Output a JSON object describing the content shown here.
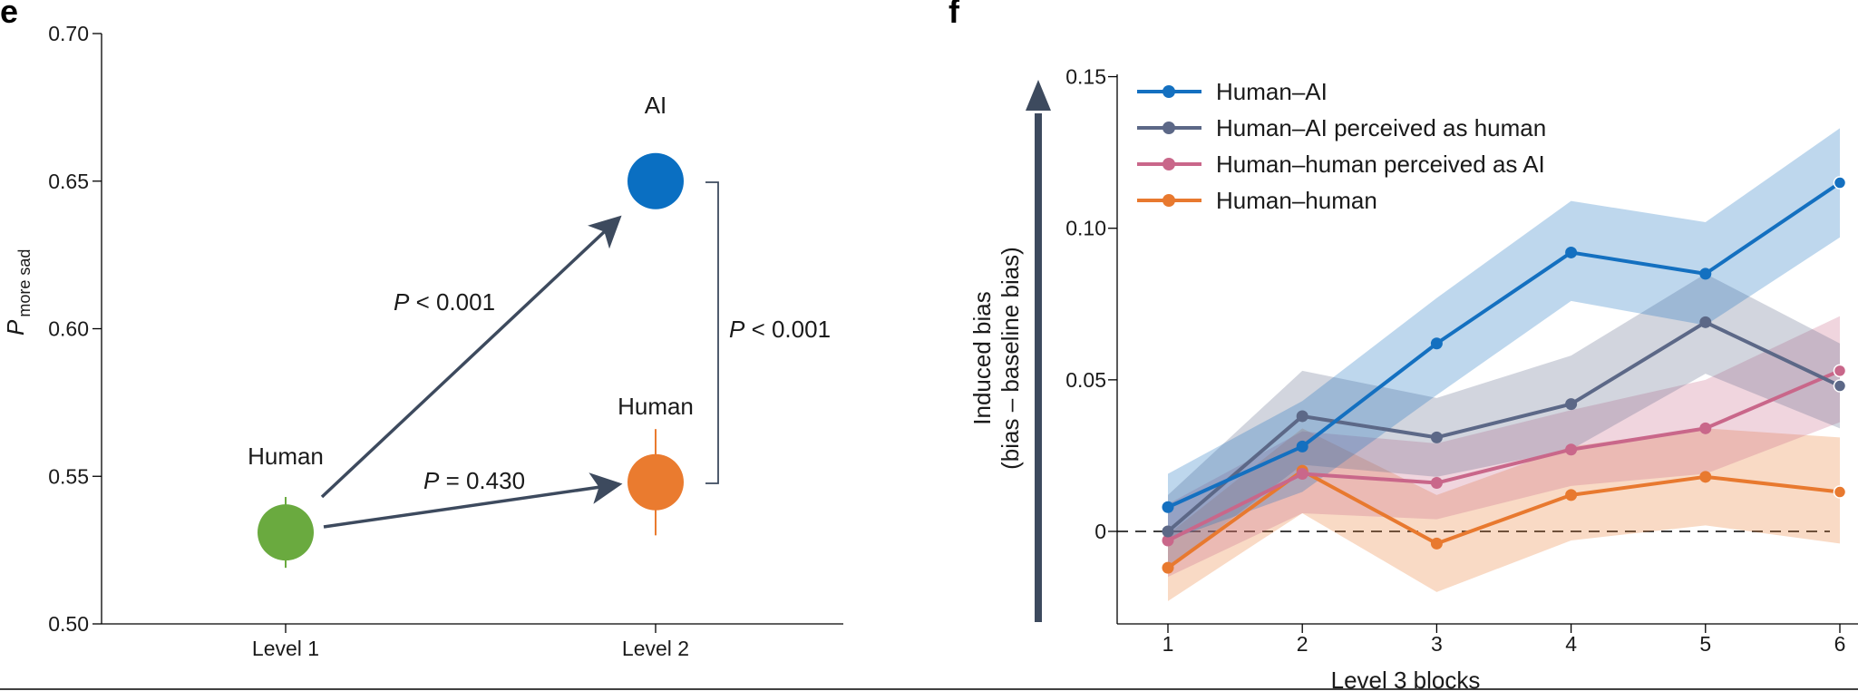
{
  "chart_data": [
    {
      "panel": "e",
      "type": "scatter",
      "categories": [
        "Level 1",
        "Level 2"
      ],
      "ylabel_main": "P",
      "ylabel_sub": "more sad",
      "ylim": [
        0.5,
        0.7
      ],
      "yticks": [
        "0.70",
        "0.65",
        "0.60",
        "0.55",
        "0.50"
      ],
      "points": [
        {
          "label": "Human",
          "category": "Level 1",
          "value": 0.531,
          "err_low": 0.519,
          "err_high": 0.543,
          "color": "#6aaa3f"
        },
        {
          "label": "AI",
          "category": "Level 2",
          "value": 0.65,
          "err_low": 0.65,
          "err_high": 0.65,
          "color": "#0a6fc2"
        },
        {
          "label": "Human",
          "category": "Level 2",
          "value": 0.548,
          "err_low": 0.53,
          "err_high": 0.566,
          "color": "#ea7b2f"
        }
      ],
      "annotations": [
        {
          "italic": "P",
          "rest": " < 0.001"
        },
        {
          "italic": "P",
          "rest": " = 0.430"
        },
        {
          "italic": "P",
          "rest": " < 0.001"
        }
      ]
    },
    {
      "panel": "f",
      "type": "line",
      "xlabel": "Level 3 blocks",
      "ylabel": "Induced bias",
      "ylabel2": "(bias – baseline bias)",
      "x": [
        1,
        2,
        3,
        4,
        5,
        6
      ],
      "xticks": [
        "1",
        "2",
        "3",
        "4",
        "5",
        "6"
      ],
      "ylim": [
        -0.03,
        0.15
      ],
      "yticks": [
        "0.15",
        "0.10",
        "0.05",
        "0"
      ],
      "reference_line": 0,
      "legend_position": "top-left",
      "series": [
        {
          "name": "Human–AI",
          "color": "#1470c0",
          "values": [
            0.008,
            0.028,
            0.062,
            0.092,
            0.085,
            0.115
          ],
          "ci_low": [
            -0.003,
            0.013,
            0.045,
            0.076,
            0.068,
            0.097
          ],
          "ci_high": [
            0.019,
            0.043,
            0.077,
            0.109,
            0.102,
            0.133
          ]
        },
        {
          "name": "Human–AI perceived as human",
          "color": "#5c6887",
          "values": [
            0.0,
            0.038,
            0.031,
            0.042,
            0.069,
            0.048
          ],
          "ci_low": [
            -0.012,
            0.022,
            0.018,
            0.027,
            0.052,
            0.034
          ],
          "ci_high": [
            0.012,
            0.053,
            0.044,
            0.058,
            0.085,
            0.062
          ]
        },
        {
          "name": "Human–human perceived as AI",
          "color": "#c9678a",
          "values": [
            -0.003,
            0.019,
            0.016,
            0.027,
            0.034,
            0.053
          ],
          "ci_low": [
            -0.015,
            0.006,
            0.004,
            0.015,
            0.019,
            0.036
          ],
          "ci_high": [
            0.009,
            0.033,
            0.029,
            0.04,
            0.05,
            0.071
          ]
        },
        {
          "name": "Human–human",
          "color": "#e8792f",
          "values": [
            -0.012,
            0.02,
            -0.004,
            0.012,
            0.018,
            0.013
          ],
          "ci_low": [
            -0.023,
            0.006,
            -0.02,
            -0.003,
            0.002,
            -0.004
          ],
          "ci_high": [
            -0.001,
            0.034,
            0.012,
            0.028,
            0.034,
            0.031
          ]
        }
      ]
    }
  ]
}
